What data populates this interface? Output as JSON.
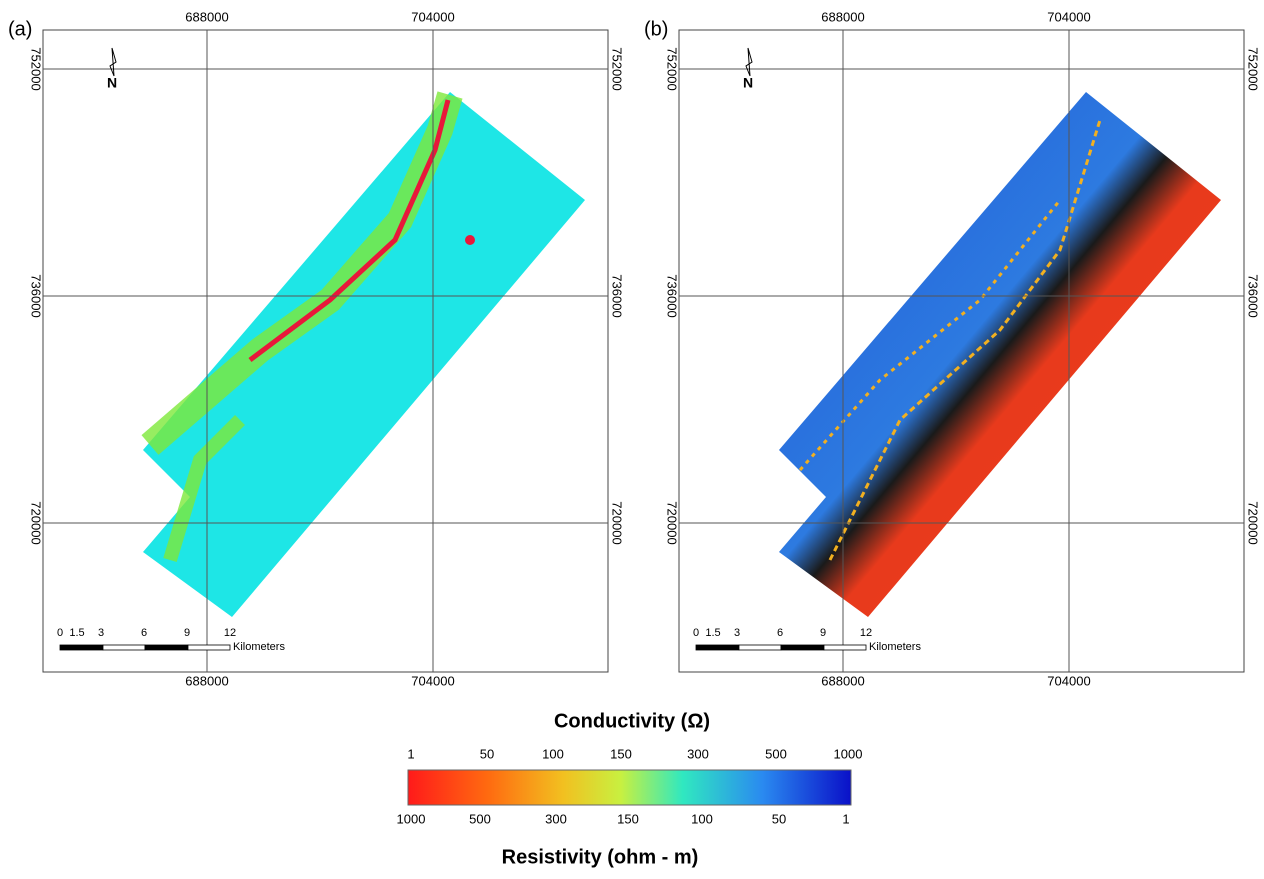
{
  "panels": [
    {
      "label": "(a)",
      "x_ticks": [
        "688000",
        "704000"
      ],
      "y_ticks": [
        "752000",
        "736000",
        "720000"
      ],
      "north": "N",
      "scale_bar": {
        "ticks": [
          "0",
          "1.5",
          "3",
          "6",
          "9",
          "12"
        ],
        "unit": "Kilometers"
      }
    },
    {
      "label": "(b)",
      "x_ticks": [
        "688000",
        "704000"
      ],
      "y_ticks": [
        "752000",
        "736000",
        "720000"
      ],
      "north": "N",
      "scale_bar": {
        "ticks": [
          "0",
          "1.5",
          "3",
          "6",
          "9",
          "12"
        ],
        "unit": "Kilometers"
      }
    }
  ],
  "legend": {
    "title": "Conductivity (Ω)",
    "top_labels": [
      "1",
      "50",
      "100",
      "150",
      "300",
      "500",
      "1000"
    ],
    "bottom_labels": [
      "1000",
      "500",
      "300",
      "150",
      "100",
      "50",
      "1"
    ],
    "subtitle": "Resistivity (ohm - m)"
  }
}
